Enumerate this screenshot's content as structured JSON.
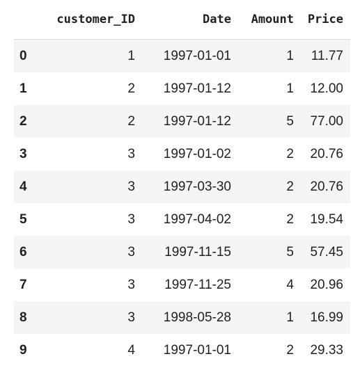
{
  "dataframe": {
    "columns": [
      "",
      "customer_ID",
      "Date",
      "Amount",
      "Price"
    ],
    "rows": [
      {
        "index": "0",
        "customer_ID": "1",
        "Date": "1997-01-01",
        "Amount": "1",
        "Price": "11.77"
      },
      {
        "index": "1",
        "customer_ID": "2",
        "Date": "1997-01-12",
        "Amount": "1",
        "Price": "12.00"
      },
      {
        "index": "2",
        "customer_ID": "2",
        "Date": "1997-01-12",
        "Amount": "5",
        "Price": "77.00"
      },
      {
        "index": "3",
        "customer_ID": "3",
        "Date": "1997-01-02",
        "Amount": "2",
        "Price": "20.76"
      },
      {
        "index": "4",
        "customer_ID": "3",
        "Date": "1997-03-30",
        "Amount": "2",
        "Price": "20.76"
      },
      {
        "index": "5",
        "customer_ID": "3",
        "Date": "1997-04-02",
        "Amount": "2",
        "Price": "19.54"
      },
      {
        "index": "6",
        "customer_ID": "3",
        "Date": "1997-11-15",
        "Amount": "5",
        "Price": "57.45"
      },
      {
        "index": "7",
        "customer_ID": "3",
        "Date": "1997-11-25",
        "Amount": "4",
        "Price": "20.96"
      },
      {
        "index": "8",
        "customer_ID": "3",
        "Date": "1998-05-28",
        "Amount": "1",
        "Price": "16.99"
      },
      {
        "index": "9",
        "customer_ID": "4",
        "Date": "1997-01-01",
        "Amount": "2",
        "Price": "29.33"
      }
    ]
  }
}
